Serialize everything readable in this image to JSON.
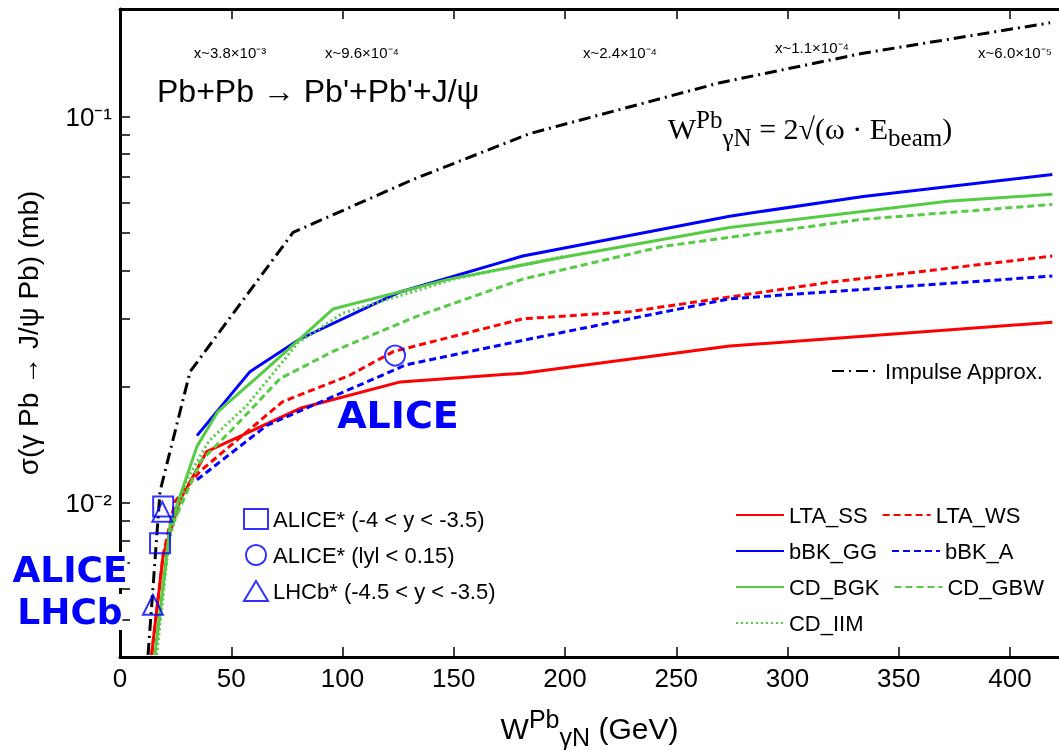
{
  "chart_data": {
    "type": "line",
    "title": "Pb+Pb → Pb'+Pb'+J/ψ",
    "xlabel": "W$^{Pb}$$_{γN}$ (GeV)",
    "ylabel": "σ(γ Pb → J/ψ Pb) (mb)",
    "xlim": [
      0,
      422
    ],
    "xticks": [
      0,
      50,
      100,
      150,
      200,
      250,
      300,
      350,
      400
    ],
    "ylim": [
      0.004,
      0.19
    ],
    "log": "y",
    "yticks": [
      {
        "value": 0.005,
        "label": null
      },
      {
        "value": 0.006,
        "label": null
      },
      {
        "value": 0.007,
        "label": null
      },
      {
        "value": 0.008,
        "label": null
      },
      {
        "value": 0.009,
        "label": null
      },
      {
        "value": 0.01,
        "label": "10⁻²"
      },
      {
        "value": 0.02,
        "label": null
      },
      {
        "value": 0.03,
        "label": null
      },
      {
        "value": 0.04,
        "label": null
      },
      {
        "value": 0.05,
        "label": null
      },
      {
        "value": 0.06,
        "label": null
      },
      {
        "value": 0.07,
        "label": null
      },
      {
        "value": 0.08,
        "label": null
      },
      {
        "value": 0.09,
        "label": null
      },
      {
        "value": 0.1,
        "label": "10⁻¹"
      }
    ],
    "grid": false,
    "legend": "bottom right",
    "series": [
      {
        "name": "Impulse Approx.",
        "color": "#000000",
        "line_style": "dashdot",
        "x": [
          12.6,
          14.4,
          18,
          31.5,
          77.8,
          131.7,
          184,
          269.7,
          334,
          418
        ],
        "values": [
          0.00405,
          0.00559,
          0.01074,
          0.0219,
          0.0502,
          0.0688,
          0.0904,
          0.1225,
          0.146,
          0.175
        ]
      },
      {
        "name": "LTA_SS",
        "color": "#ff0000",
        "line_style": "solid",
        "x": [
          14.2,
          19.4,
          27,
          39,
          81,
          126,
          181,
          274,
          419
        ],
        "values": [
          0.00405,
          0.00735,
          0.0102,
          0.0136,
          0.0176,
          0.0206,
          0.0217,
          0.0255,
          0.0294
        ]
      },
      {
        "name": "LTA_WS",
        "color": "#ff0000",
        "line_style": "dashed",
        "x": [
          14.2,
          19.4,
          24.7,
          36,
          73,
          103,
          123,
          181,
          229,
          319,
          419
        ],
        "values": [
          0.00405,
          0.00735,
          0.0101,
          0.0121,
          0.0183,
          0.0214,
          0.0247,
          0.03,
          0.0313,
          0.0373,
          0.0436
        ]
      },
      {
        "name": "bBK_GG",
        "color": "#0000ff",
        "line_style": "solid",
        "x": [
          34.6,
          58.4,
          80.9,
          125.8,
          181,
          274,
          334,
          419
        ],
        "values": [
          0.01496,
          0.0219,
          0.0266,
          0.0352,
          0.0436,
          0.0553,
          0.0622,
          0.0709
        ]
      },
      {
        "name": "bBK_A",
        "color": "#0000ff",
        "line_style": "dashed",
        "x": [
          34.6,
          66,
          128.5,
          184,
          274,
          419
        ],
        "values": [
          0.0115,
          0.0159,
          0.0228,
          0.0266,
          0.0338,
          0.0387
        ]
      },
      {
        "name": "CD_BGK",
        "color": "#55cc44",
        "line_style": "solid",
        "x": [
          15.7,
          22.5,
          34.6,
          44,
          66,
          95.7,
          148,
          202,
          274,
          372,
          419
        ],
        "values": [
          0.00405,
          0.00877,
          0.01403,
          0.01726,
          0.0223,
          0.0318,
          0.038,
          0.0436,
          0.0517,
          0.0604,
          0.063
        ]
      },
      {
        "name": "CD_GBW",
        "color": "#55cc44",
        "line_style": "dashed",
        "x": [
          15.7,
          22.5,
          36,
          50.8,
          71.9,
          95.7,
          133,
          181,
          244,
          334,
          419
        ],
        "values": [
          0.00405,
          0.0085,
          0.0128,
          0.0156,
          0.021,
          0.0247,
          0.0304,
          0.038,
          0.0462,
          0.0543,
          0.0593
        ]
      },
      {
        "name": "CD_IIM",
        "color": "#55cc44",
        "line_style": "dotted",
        "x": [
          16.5,
          22,
          30,
          40,
          57,
          80,
          100,
          150,
          200
        ],
        "values": [
          0.00405,
          0.008,
          0.0115,
          0.0145,
          0.0179,
          0.026,
          0.031,
          0.038,
          0.0436
        ]
      },
      {
        "name": "ALICE* (-4 < y < -3.5)",
        "type": "scatter",
        "marker": "square",
        "color": "#0000ff",
        "x": [
          18,
          19.4
        ],
        "values": [
          0.00788,
          0.0098
        ]
      },
      {
        "name": "ALICE* (lyl < 0.15)",
        "type": "scatter",
        "marker": "circle",
        "color": "#0000ff",
        "x": [
          123.6
        ],
        "values": [
          0.0241
        ]
      },
      {
        "name": "LHCb* (-4.5 < y < -3.5)",
        "type": "scatter",
        "marker": "triangle",
        "color": "#0000ff",
        "x": [
          14.8,
          19
        ],
        "values": [
          0.00546,
          0.0095
        ]
      }
    ],
    "annotations": [
      "x~3.8×10⁻³",
      "x~9.6×10⁻⁴",
      "x~2.4×10⁻⁴",
      "x~1.1×10⁻⁴",
      "x~6.0×10⁻⁵",
      "W$^{Pb}$$_{γN}$ = 2√(ω · E$_{beam}$)",
      "ALICE",
      "ALICE",
      "LHCb"
    ]
  }
}
